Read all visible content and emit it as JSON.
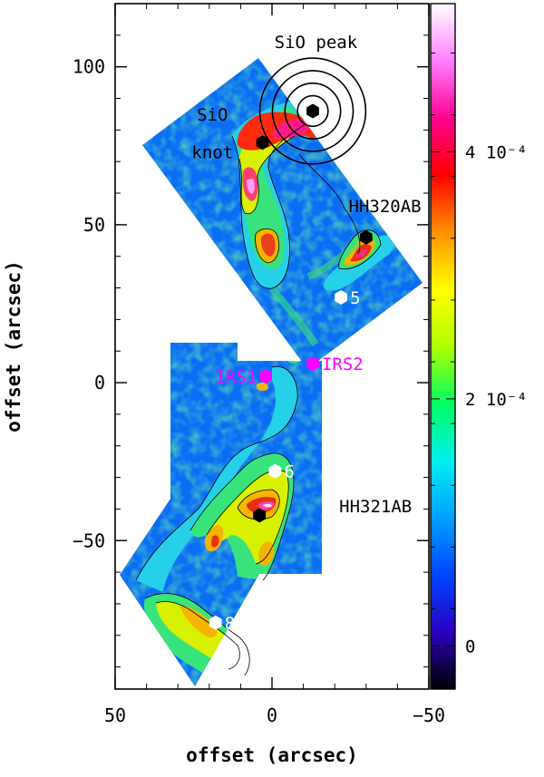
{
  "chart_data": {
    "type": "heatmap",
    "xlabel": "offset (arcsec)",
    "ylabel": "offset (arcsec)",
    "xlim": [
      50,
      -50
    ],
    "ylim": [
      -97,
      120
    ],
    "x_ticks": [
      {
        "value": 50,
        "label": "50"
      },
      {
        "value": 0,
        "label": "0"
      },
      {
        "value": -50,
        "label": "−50"
      }
    ],
    "y_ticks": [
      {
        "value": 100,
        "label": "100"
      },
      {
        "value": 50,
        "label": "50"
      },
      {
        "value": 0,
        "label": "0"
      },
      {
        "value": -50,
        "label": "−50"
      }
    ],
    "colorbar": {
      "range": [
        -3.5e-05,
        0.00052
      ],
      "ticks": [
        {
          "value": 0,
          "label": "0"
        },
        {
          "value": 0.0002,
          "label": "2 10⁻⁴"
        },
        {
          "value": 0.0004,
          "label": "4 10⁻⁴"
        }
      ],
      "colormap": [
        "#000000",
        "#2a00c0",
        "#0046ff",
        "#00a0ff",
        "#00f0f0",
        "#00ff60",
        "#b0ff00",
        "#ffff00",
        "#ff9000",
        "#ff0000",
        "#ff0090",
        "#ff80ff",
        "#ffffff"
      ]
    },
    "markers": [
      {
        "x": 2,
        "y": 2,
        "color": "#ff00ff",
        "label": "IRS1",
        "label_color": "#ff00ff"
      },
      {
        "x": -13,
        "y": 6,
        "color": "#ff00ff",
        "label": "IRS2",
        "label_color": "#ff00ff"
      },
      {
        "x": -22,
        "y": 27,
        "color": "#ffffff",
        "label": "5",
        "label_color": "#ffffff"
      },
      {
        "x": -1,
        "y": -28,
        "color": "#ffffff",
        "label": "6",
        "label_color": "#ffffff"
      },
      {
        "x": 18,
        "y": -76,
        "color": "#ffffff",
        "label": "8",
        "label_color": "#ffffff"
      },
      {
        "x": 3,
        "y": 76,
        "color": "#000000",
        "label": "",
        "label_color": "#000000"
      },
      {
        "x": -30,
        "y": 46,
        "color": "#000000",
        "label": "",
        "label_color": "#000000"
      },
      {
        "x": 4,
        "y": -42,
        "color": "#000000",
        "label": "",
        "label_color": "#000000"
      },
      {
        "x": -13,
        "y": 86,
        "color": "#000000",
        "label": "",
        "label_color": "#000000"
      }
    ],
    "annotations": [
      {
        "text": "SiO peak",
        "x": -14,
        "y": 106
      },
      {
        "text": "SiO",
        "x": 19,
        "y": 83
      },
      {
        "text": "knot",
        "x": 19,
        "y": 71
      },
      {
        "text": "HH320AB",
        "x": -36,
        "y": 54
      },
      {
        "text": "HH321AB",
        "x": -33,
        "y": -41
      }
    ],
    "sio_peak": {
      "x": -13,
      "y": 86,
      "ring_radii_arcsec": [
        4,
        8,
        12,
        16
      ]
    }
  }
}
